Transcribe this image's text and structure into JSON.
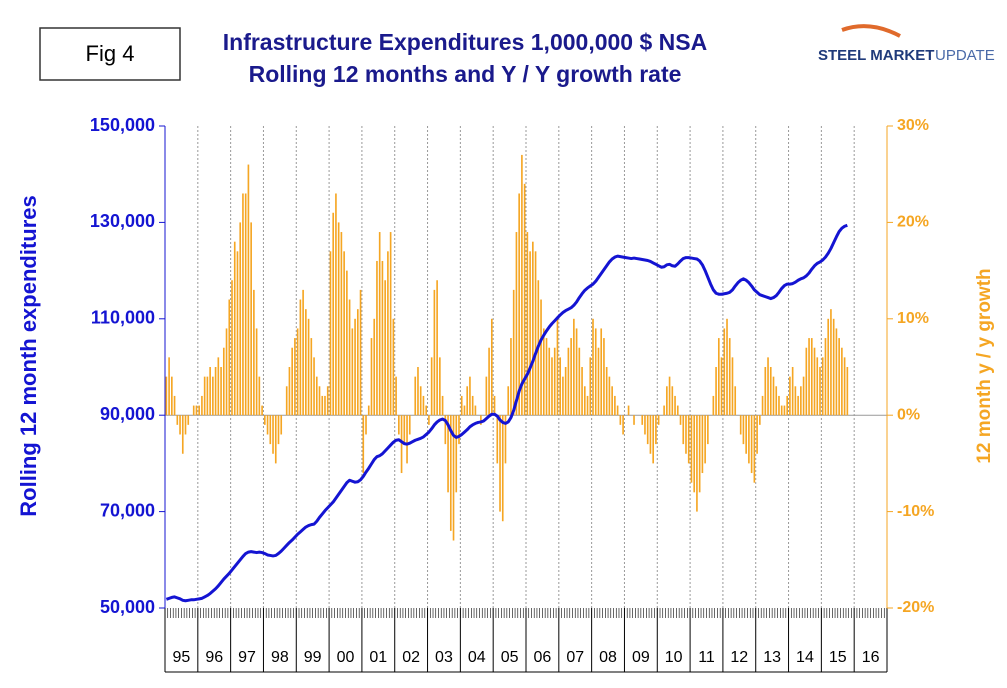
{
  "fig_label": "Fig 4",
  "logo": {
    "main": "STEEL MARKET",
    "sub": "UPDATE"
  },
  "chart_data": {
    "type": "bar-line",
    "title": "Infrastructure Expenditures 1,000,000 $ NSA",
    "subtitle": "Rolling 12 months and Y / Y growth rate",
    "y_label": "Rolling 12 month expenditures",
    "y2_label": "12 month y / y growth",
    "categories": [
      null,
      null,
      null,
      null,
      null,
      null,
      "95",
      null,
      null,
      null,
      null,
      null,
      null,
      null,
      null,
      null,
      null,
      null,
      "96",
      null,
      null,
      null,
      null,
      null,
      null,
      null,
      null,
      null,
      null,
      null,
      "97",
      null,
      null,
      null,
      null,
      null,
      null,
      null,
      null,
      null,
      null,
      null,
      "98",
      null,
      null,
      null,
      null,
      null,
      null,
      null,
      null,
      null,
      null,
      null,
      "99",
      null,
      null,
      null,
      null,
      null,
      null,
      null,
      null,
      null,
      null,
      null,
      "00",
      null,
      null,
      null,
      null,
      null,
      null,
      null,
      null,
      null,
      null,
      null,
      "01",
      null,
      null,
      null,
      null,
      null,
      null,
      null,
      null,
      null,
      null,
      null,
      "02",
      null,
      null,
      null,
      null,
      null,
      null,
      null,
      null,
      null,
      null,
      null,
      "03",
      null,
      null,
      null,
      null,
      null,
      null,
      null,
      null,
      null,
      null,
      null,
      "04",
      null,
      null,
      null,
      null,
      null,
      null,
      null,
      null,
      null,
      null,
      null,
      "05",
      null,
      null,
      null,
      null,
      null,
      null,
      null,
      null,
      null,
      null,
      null,
      "06",
      null,
      null,
      null,
      null,
      null,
      null,
      null,
      null,
      null,
      null,
      null,
      "07",
      null,
      null,
      null,
      null,
      null,
      null,
      null,
      null,
      null,
      null,
      null,
      "08",
      null,
      null,
      null,
      null,
      null,
      null,
      null,
      null,
      null,
      null,
      null,
      "09",
      null,
      null,
      null,
      null,
      null,
      null,
      null,
      null,
      null,
      null,
      null,
      "10",
      null,
      null,
      null,
      null,
      null,
      null,
      null,
      null,
      null,
      null,
      null,
      "11",
      null,
      null,
      null,
      null,
      null,
      null,
      null,
      null,
      null,
      null,
      null,
      "12",
      null,
      null,
      null,
      null,
      null,
      null,
      null,
      null,
      null,
      null,
      null,
      "13",
      null,
      null,
      null,
      null,
      null,
      null,
      null,
      null,
      null,
      null,
      null,
      "14",
      null,
      null,
      null,
      null,
      null,
      null,
      null,
      null,
      null,
      null,
      null,
      "15",
      null,
      null,
      null,
      null,
      null,
      null,
      null,
      null,
      null,
      null,
      null,
      "16",
      null,
      null,
      null,
      null,
      null
    ],
    "series": [
      {
        "type": "bar",
        "axis": "y2",
        "color": "#f5a623",
        "values": [
          4,
          6,
          4,
          2,
          -1,
          -2,
          -4,
          -2,
          -1,
          0,
          1,
          1,
          1,
          2,
          4,
          4,
          5,
          4,
          5,
          6,
          5,
          7,
          9,
          12,
          14,
          18,
          17,
          20,
          23,
          23,
          26,
          20,
          13,
          9,
          4,
          1,
          -1,
          -2,
          -3,
          -4,
          -5,
          -3,
          -2,
          0,
          3,
          5,
          7,
          8,
          9,
          12,
          13,
          11,
          10,
          8,
          6,
          4,
          3,
          2,
          2,
          3,
          17,
          21,
          23,
          20,
          19,
          17,
          15,
          12,
          9,
          10,
          11,
          13,
          -6,
          -2,
          1,
          8,
          10,
          16,
          19,
          16,
          14,
          17,
          19,
          10,
          4,
          -2,
          -6,
          -3,
          -5,
          -2,
          0,
          4,
          5,
          3,
          2,
          1,
          -1,
          6,
          13,
          14,
          6,
          2,
          -3,
          -8,
          -12,
          -13,
          -8,
          -3,
          2,
          1,
          3,
          4,
          2,
          1,
          0,
          -1,
          0,
          4,
          7,
          10,
          2,
          -5,
          -10,
          -11,
          -5,
          3,
          8,
          13,
          19,
          23,
          27,
          24,
          19,
          17,
          18,
          17,
          14,
          12,
          9,
          8,
          7,
          6,
          7,
          10,
          6,
          4,
          5,
          7,
          8,
          10,
          9,
          7,
          5,
          3,
          2,
          6,
          10,
          9,
          7,
          9,
          8,
          5,
          4,
          3,
          2,
          1,
          -1,
          -2,
          0,
          1,
          0,
          -1,
          0,
          0,
          -1,
          -2,
          -3,
          -4,
          -5,
          -3,
          -1,
          0,
          1,
          3,
          4,
          3,
          2,
          1,
          -1,
          -3,
          -4,
          -5,
          -7,
          -8,
          -10,
          -8,
          -6,
          -5,
          -3,
          0,
          2,
          5,
          8,
          6,
          9,
          10,
          8,
          6,
          3,
          0,
          -2,
          -3,
          -4,
          -5,
          -6,
          -7,
          -4,
          -1,
          2,
          5,
          6,
          5,
          4,
          3,
          2,
          1,
          1,
          2,
          4,
          5,
          3,
          2,
          3,
          4,
          7,
          8,
          8,
          7,
          6,
          5,
          6,
          8,
          10,
          11,
          10,
          9,
          8,
          7,
          6,
          5,
          null,
          null,
          null,
          null,
          null,
          null,
          null,
          null,
          null,
          null,
          null,
          null,
          null,
          null
        ]
      },
      {
        "type": "line",
        "axis": "y",
        "color": "#1414d2",
        "values": [
          51800,
          52000,
          52200,
          52300,
          52100,
          51900,
          51600,
          51500,
          51600,
          51700,
          51700,
          51800,
          51900,
          52000,
          52300,
          52600,
          53000,
          53500,
          54000,
          54600,
          55300,
          56000,
          56600,
          57200,
          57900,
          58600,
          59300,
          60000,
          60700,
          61300,
          61600,
          61700,
          61600,
          61500,
          61600,
          61500,
          61300,
          61000,
          60900,
          60800,
          60900,
          61300,
          61800,
          62400,
          63000,
          63600,
          64100,
          64700,
          65300,
          65800,
          66300,
          66800,
          67100,
          67300,
          67400,
          68000,
          68800,
          69500,
          70200,
          70800,
          71400,
          72000,
          72800,
          73600,
          74400,
          75200,
          76000,
          76500,
          76300,
          76100,
          76200,
          76600,
          77300,
          78200,
          79000,
          79900,
          80800,
          81400,
          81600,
          82000,
          82600,
          83200,
          83800,
          84400,
          84800,
          84900,
          84500,
          84100,
          84000,
          84200,
          84500,
          84800,
          85000,
          85200,
          85500,
          86000,
          86500,
          87200,
          88000,
          88600,
          89000,
          89200,
          88900,
          88000,
          86800,
          85800,
          85400,
          85600,
          86000,
          86500,
          87000,
          87600,
          88000,
          88300,
          88500,
          88600,
          88800,
          89300,
          89800,
          90200,
          90200,
          89800,
          89000,
          88500,
          88300,
          88600,
          89500,
          91000,
          93000,
          95000,
          96500,
          97500,
          98500,
          99800,
          101200,
          102800,
          104300,
          105600,
          106600,
          107500,
          108300,
          109000,
          109600,
          110200,
          110800,
          111300,
          111700,
          112000,
          112300,
          112800,
          113500,
          114400,
          115200,
          115900,
          116400,
          116800,
          117200,
          117800,
          118600,
          119400,
          120200,
          121000,
          121800,
          122400,
          122800,
          123000,
          122900,
          122800,
          122700,
          122600,
          122500,
          122600,
          122500,
          122400,
          122300,
          122200,
          122100,
          121900,
          121600,
          121300,
          121000,
          120700,
          120800,
          121200,
          121300,
          121000,
          120900,
          121400,
          122000,
          122500,
          122700,
          122700,
          122600,
          122500,
          122400,
          122000,
          121200,
          120000,
          118600,
          117200,
          116000,
          115300,
          115100,
          115100,
          115200,
          115300,
          115500,
          116000,
          116800,
          117500,
          118000,
          118300,
          118000,
          117500,
          116800,
          116000,
          115500,
          115000,
          114800,
          114600,
          114400,
          114200,
          114400,
          114800,
          115500,
          116300,
          116900,
          117200,
          117200,
          117300,
          117600,
          118000,
          118300,
          118500,
          118900,
          119500,
          120300,
          121000,
          121500,
          121800,
          122200,
          122800,
          123600,
          124600,
          125800,
          127000,
          128100,
          128800,
          129200,
          129400,
          null,
          null,
          null,
          null,
          null,
          null,
          null,
          null,
          null,
          null,
          null,
          null,
          null,
          null
        ]
      }
    ],
    "ylim": [
      50000,
      150000
    ],
    "yticks": [
      {
        "value": 50000,
        "label": "50,000"
      },
      {
        "value": 70000,
        "label": "70,000"
      },
      {
        "value": 90000,
        "label": "90,000"
      },
      {
        "value": 110000,
        "label": "110,000"
      },
      {
        "value": 130000,
        "label": "130,000"
      },
      {
        "value": 150000,
        "label": "150,000"
      }
    ],
    "y2lim": [
      -20,
      30
    ],
    "y2ticks": [
      {
        "value": -20,
        "label": "-20%"
      },
      {
        "value": -10,
        "label": "-10%"
      },
      {
        "value": 0,
        "label": "0%"
      },
      {
        "value": 10,
        "label": "10%"
      },
      {
        "value": 20,
        "label": "20%"
      },
      {
        "value": 30,
        "label": "30%"
      }
    ],
    "xgrid": true
  }
}
